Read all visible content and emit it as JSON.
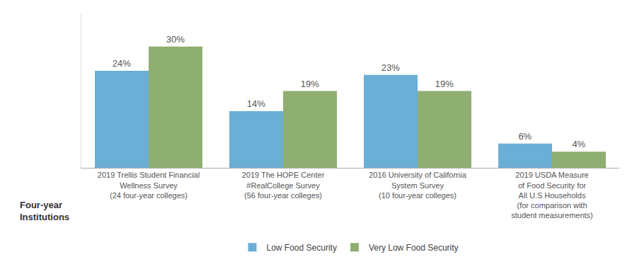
{
  "chart_data": {
    "type": "bar",
    "categories": [
      "2019 Trellis Student Financial\nWellness Survey\n(24 four-year colleges)",
      "2019 The HOPE Center\n#RealCollege Survey\n(56 four-year colleges)",
      "2016 University of California\nSystem Survey\n(10 four-year colleges)",
      "2019 USDA Measure\nof Food Security for\nAll U.S Households\n(for comparison with\nstudent measurements)"
    ],
    "series": [
      {
        "name": "Low Food Security",
        "color": "#6BAED6",
        "values": [
          24,
          14,
          23,
          6
        ],
        "value_labels": [
          "24%",
          "14%",
          "23%",
          "6%"
        ]
      },
      {
        "name": "Very Low Food Security",
        "color": "#8FAF72",
        "values": [
          30,
          19,
          19,
          4
        ],
        "value_labels": [
          "30%",
          "19%",
          "19%",
          "4%"
        ]
      }
    ],
    "ylim": [
      0,
      38
    ],
    "grid": false,
    "legend": "bottom",
    "data_labels": true,
    "tick_labels": "x",
    "annotations": [
      "Four-year\nInstitutions"
    ]
  }
}
